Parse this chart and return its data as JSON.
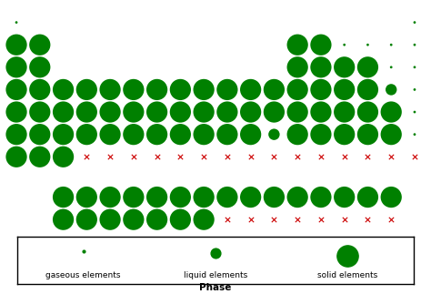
{
  "background_color": "#ffffff",
  "green_color": "#008000",
  "red_color": "#cc0000",
  "xlabel": "Phase",
  "legend_labels": [
    "gaseous elements",
    "liquid elements",
    "solid elements"
  ],
  "elements": [
    [
      1,
      1,
      "G"
    ],
    [
      1,
      18,
      "G"
    ],
    [
      2,
      1,
      "S"
    ],
    [
      2,
      2,
      "S"
    ],
    [
      2,
      13,
      "S"
    ],
    [
      2,
      14,
      "S"
    ],
    [
      2,
      15,
      "G"
    ],
    [
      2,
      16,
      "G"
    ],
    [
      2,
      17,
      "G"
    ],
    [
      2,
      18,
      "G"
    ],
    [
      3,
      1,
      "S"
    ],
    [
      3,
      2,
      "S"
    ],
    [
      3,
      13,
      "S"
    ],
    [
      3,
      14,
      "S"
    ],
    [
      3,
      15,
      "S"
    ],
    [
      3,
      16,
      "S"
    ],
    [
      3,
      17,
      "G"
    ],
    [
      3,
      18,
      "G"
    ],
    [
      4,
      1,
      "S"
    ],
    [
      4,
      2,
      "S"
    ],
    [
      4,
      3,
      "S"
    ],
    [
      4,
      4,
      "S"
    ],
    [
      4,
      5,
      "S"
    ],
    [
      4,
      6,
      "S"
    ],
    [
      4,
      7,
      "S"
    ],
    [
      4,
      8,
      "S"
    ],
    [
      4,
      9,
      "S"
    ],
    [
      4,
      10,
      "S"
    ],
    [
      4,
      11,
      "S"
    ],
    [
      4,
      12,
      "S"
    ],
    [
      4,
      13,
      "S"
    ],
    [
      4,
      14,
      "S"
    ],
    [
      4,
      15,
      "S"
    ],
    [
      4,
      16,
      "S"
    ],
    [
      4,
      17,
      "L"
    ],
    [
      4,
      18,
      "G"
    ],
    [
      5,
      1,
      "S"
    ],
    [
      5,
      2,
      "S"
    ],
    [
      5,
      3,
      "S"
    ],
    [
      5,
      4,
      "S"
    ],
    [
      5,
      5,
      "S"
    ],
    [
      5,
      6,
      "S"
    ],
    [
      5,
      7,
      "S"
    ],
    [
      5,
      8,
      "S"
    ],
    [
      5,
      9,
      "S"
    ],
    [
      5,
      10,
      "S"
    ],
    [
      5,
      11,
      "S"
    ],
    [
      5,
      12,
      "S"
    ],
    [
      5,
      13,
      "S"
    ],
    [
      5,
      14,
      "S"
    ],
    [
      5,
      15,
      "S"
    ],
    [
      5,
      16,
      "S"
    ],
    [
      5,
      17,
      "S"
    ],
    [
      5,
      18,
      "G"
    ],
    [
      6,
      1,
      "S"
    ],
    [
      6,
      2,
      "S"
    ],
    [
      6,
      3,
      "S"
    ],
    [
      6,
      4,
      "S"
    ],
    [
      6,
      5,
      "S"
    ],
    [
      6,
      6,
      "S"
    ],
    [
      6,
      7,
      "S"
    ],
    [
      6,
      8,
      "S"
    ],
    [
      6,
      9,
      "S"
    ],
    [
      6,
      10,
      "S"
    ],
    [
      6,
      11,
      "S"
    ],
    [
      6,
      12,
      "L"
    ],
    [
      6,
      13,
      "S"
    ],
    [
      6,
      14,
      "S"
    ],
    [
      6,
      15,
      "S"
    ],
    [
      6,
      16,
      "S"
    ],
    [
      6,
      17,
      "S"
    ],
    [
      6,
      18,
      "G"
    ],
    [
      7,
      1,
      "S"
    ],
    [
      7,
      2,
      "S"
    ],
    [
      7,
      3,
      "S"
    ],
    [
      7,
      4,
      "X"
    ],
    [
      7,
      5,
      "X"
    ],
    [
      7,
      6,
      "X"
    ],
    [
      7,
      7,
      "X"
    ],
    [
      7,
      8,
      "X"
    ],
    [
      7,
      9,
      "X"
    ],
    [
      7,
      10,
      "X"
    ],
    [
      7,
      11,
      "X"
    ],
    [
      7,
      12,
      "X"
    ],
    [
      7,
      13,
      "X"
    ],
    [
      7,
      14,
      "X"
    ],
    [
      7,
      15,
      "X"
    ],
    [
      7,
      16,
      "X"
    ],
    [
      7,
      17,
      "X"
    ],
    [
      7,
      18,
      "X"
    ],
    [
      9,
      3,
      "S"
    ],
    [
      9,
      4,
      "S"
    ],
    [
      9,
      5,
      "S"
    ],
    [
      9,
      6,
      "S"
    ],
    [
      9,
      7,
      "S"
    ],
    [
      9,
      8,
      "S"
    ],
    [
      9,
      9,
      "S"
    ],
    [
      9,
      10,
      "S"
    ],
    [
      9,
      11,
      "S"
    ],
    [
      9,
      12,
      "S"
    ],
    [
      9,
      13,
      "S"
    ],
    [
      9,
      14,
      "S"
    ],
    [
      9,
      15,
      "S"
    ],
    [
      9,
      16,
      "S"
    ],
    [
      9,
      17,
      "S"
    ],
    [
      10,
      3,
      "S"
    ],
    [
      10,
      4,
      "S"
    ],
    [
      10,
      5,
      "S"
    ],
    [
      10,
      6,
      "S"
    ],
    [
      10,
      7,
      "S"
    ],
    [
      10,
      8,
      "S"
    ],
    [
      10,
      9,
      "S"
    ],
    [
      10,
      10,
      "X"
    ],
    [
      10,
      11,
      "X"
    ],
    [
      10,
      12,
      "X"
    ],
    [
      10,
      13,
      "X"
    ],
    [
      10,
      14,
      "X"
    ],
    [
      10,
      15,
      "X"
    ],
    [
      10,
      16,
      "X"
    ],
    [
      10,
      17,
      "X"
    ]
  ],
  "size_gaseous": 4,
  "size_liquid": 80,
  "size_solid": 280,
  "size_unknown_marker": 15,
  "legend_size_gaseous": 4,
  "legend_size_liquid": 60,
  "legend_size_solid": 280
}
